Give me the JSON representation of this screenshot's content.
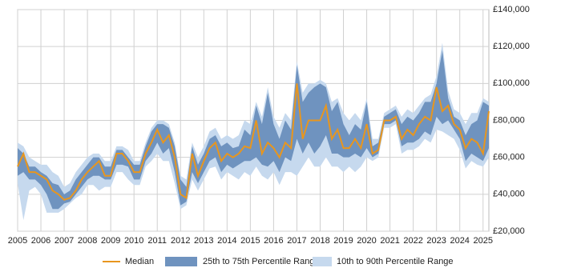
{
  "chart_data": {
    "type": "band-line",
    "x": [
      2005,
      2005.25,
      2005.5,
      2005.75,
      2006,
      2006.25,
      2006.5,
      2006.75,
      2007,
      2007.25,
      2007.5,
      2007.75,
      2008,
      2008.25,
      2008.5,
      2008.75,
      2009,
      2009.25,
      2009.5,
      2009.75,
      2010,
      2010.25,
      2010.5,
      2010.75,
      2011,
      2011.25,
      2011.5,
      2011.75,
      2012,
      2012.25,
      2012.5,
      2012.75,
      2013,
      2013.25,
      2013.5,
      2013.75,
      2014,
      2014.25,
      2014.5,
      2014.75,
      2015,
      2015.25,
      2015.5,
      2015.75,
      2016,
      2016.25,
      2016.5,
      2016.75,
      2017,
      2017.25,
      2017.5,
      2017.75,
      2018,
      2018.25,
      2018.5,
      2018.75,
      2019,
      2019.25,
      2019.5,
      2019.75,
      2020,
      2020.25,
      2020.5,
      2020.75,
      2021,
      2021.25,
      2021.5,
      2021.75,
      2022,
      2022.25,
      2022.5,
      2022.75,
      2023,
      2023.25,
      2023.5,
      2023.75,
      2024,
      2024.25,
      2024.5,
      2024.75,
      2025,
      2025.25
    ],
    "series": [
      {
        "name": "Median",
        "color": "#e8961e",
        "values": [
          55000,
          62000,
          52000,
          52000,
          50000,
          48000,
          42000,
          40000,
          37000,
          38000,
          42000,
          48000,
          52000,
          55000,
          58000,
          50000,
          50000,
          62000,
          62000,
          58000,
          52000,
          52000,
          62000,
          68000,
          75000,
          68000,
          72000,
          60000,
          40000,
          38000,
          62000,
          50000,
          58000,
          65000,
          68000,
          58000,
          62000,
          60000,
          62000,
          66000,
          65000,
          80000,
          62000,
          68000,
          65000,
          60000,
          68000,
          65000,
          100000,
          70000,
          80000,
          80000,
          80000,
          88000,
          70000,
          75000,
          65000,
          65000,
          70000,
          65000,
          78000,
          62000,
          64000,
          80000,
          80000,
          82000,
          70000,
          75000,
          72000,
          78000,
          82000,
          80000,
          98000,
          85000,
          88000,
          78000,
          75000,
          65000,
          70000,
          68000,
          62000,
          85000
        ]
      },
      {
        "name": "25th to 75th Percentile Range",
        "color": "#6f93bf",
        "low": [
          50000,
          52000,
          48000,
          48000,
          45000,
          40000,
          32000,
          32000,
          35000,
          36000,
          40000,
          44000,
          48000,
          50000,
          50000,
          48000,
          48000,
          56000,
          56000,
          55000,
          48000,
          48000,
          58000,
          62000,
          68000,
          62000,
          65000,
          52000,
          34000,
          36000,
          52000,
          46000,
          52000,
          58000,
          60000,
          52000,
          56000,
          54000,
          56000,
          58000,
          58000,
          60000,
          56000,
          55000,
          58000,
          52000,
          60000,
          58000,
          70000,
          62000,
          68000,
          62000,
          66000,
          72000,
          62000,
          62000,
          60000,
          60000,
          62000,
          60000,
          65000,
          60000,
          62000,
          78000,
          78000,
          80000,
          66000,
          68000,
          68000,
          70000,
          74000,
          72000,
          82000,
          78000,
          80000,
          75000,
          70000,
          58000,
          62000,
          60000,
          58000,
          65000
        ],
        "high": [
          65000,
          62000,
          55000,
          55000,
          52000,
          50000,
          46000,
          45000,
          40000,
          42000,
          48000,
          52000,
          56000,
          60000,
          60000,
          55000,
          55000,
          64000,
          64000,
          60000,
          56000,
          56000,
          66000,
          74000,
          78000,
          78000,
          76000,
          66000,
          48000,
          44000,
          66000,
          56000,
          62000,
          70000,
          72000,
          66000,
          68000,
          65000,
          66000,
          75000,
          72000,
          88000,
          78000,
          95000,
          78000,
          70000,
          80000,
          75000,
          110000,
          90000,
          95000,
          98000,
          100000,
          98000,
          85000,
          90000,
          78000,
          72000,
          78000,
          75000,
          90000,
          66000,
          68000,
          82000,
          84000,
          86000,
          78000,
          82000,
          80000,
          84000,
          90000,
          90000,
          100000,
          118000,
          92000,
          82000,
          80000,
          72000,
          78000,
          80000,
          90000,
          88000
        ]
      },
      {
        "name": "10th to 90th Percentile Range",
        "color": "#c6d9ee",
        "low": [
          46000,
          26000,
          42000,
          44000,
          40000,
          30000,
          30000,
          30000,
          32000,
          35000,
          38000,
          40000,
          45000,
          45000,
          42000,
          44000,
          44000,
          52000,
          52000,
          48000,
          45000,
          45000,
          55000,
          58000,
          62000,
          58000,
          58000,
          46000,
          32000,
          34000,
          48000,
          42000,
          48000,
          54000,
          55000,
          48000,
          52000,
          50000,
          48000,
          52000,
          50000,
          55000,
          50000,
          48000,
          52000,
          45000,
          52000,
          52000,
          50000,
          55000,
          60000,
          55000,
          55000,
          60000,
          55000,
          55000,
          52000,
          55000,
          52000,
          55000,
          60000,
          58000,
          60000,
          76000,
          76000,
          78000,
          62000,
          64000,
          64000,
          66000,
          70000,
          68000,
          75000,
          74000,
          72000,
          70000,
          64000,
          54000,
          58000,
          56000,
          55000,
          60000
        ],
        "high": [
          68000,
          66000,
          60000,
          58000,
          56000,
          56000,
          52000,
          50000,
          44000,
          46000,
          52000,
          56000,
          60000,
          62000,
          62000,
          58000,
          58000,
          66000,
          66000,
          64000,
          58000,
          58000,
          68000,
          76000,
          80000,
          80000,
          78000,
          68000,
          50000,
          48000,
          68000,
          60000,
          66000,
          74000,
          76000,
          70000,
          72000,
          70000,
          72000,
          80000,
          78000,
          90000,
          82000,
          98000,
          82000,
          76000,
          84000,
          80000,
          112000,
          95000,
          100000,
          100000,
          102000,
          100000,
          90000,
          92000,
          84000,
          80000,
          84000,
          80000,
          92000,
          70000,
          70000,
          84000,
          86000,
          88000,
          82000,
          86000,
          84000,
          88000,
          92000,
          94000,
          104000,
          122000,
          96000,
          86000,
          84000,
          78000,
          84000,
          84000,
          92000,
          90000
        ]
      }
    ],
    "xlim": [
      2005,
      2025.25
    ],
    "xticks": [
      2005,
      2006,
      2007,
      2008,
      2009,
      2010,
      2011,
      2012,
      2013,
      2014,
      2015,
      2016,
      2017,
      2018,
      2019,
      2020,
      2021,
      2022,
      2023,
      2024,
      2025
    ],
    "ylim": [
      20000,
      140000
    ],
    "yticks": [
      {
        "value": 20000,
        "label": "£20,000"
      },
      {
        "value": 40000,
        "label": "£40,000"
      },
      {
        "value": 60000,
        "label": "£60,000"
      },
      {
        "value": 80000,
        "label": "£80,000"
      },
      {
        "value": 100000,
        "label": "£100,000"
      },
      {
        "value": 120000,
        "label": "£120,000"
      },
      {
        "value": 140000,
        "label": "£140,000"
      }
    ],
    "grid": true,
    "legend": "bottom"
  }
}
